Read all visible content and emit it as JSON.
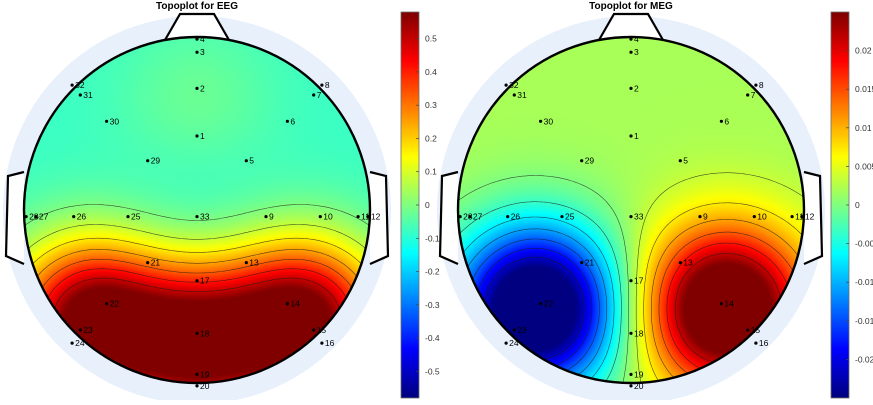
{
  "chart_data": [
    {
      "type": "heatmap",
      "subtype": "topographic head map",
      "title": "Topoplot for EEG",
      "colormap": "jet",
      "colorbar_range": [
        -0.58,
        0.58
      ],
      "colorbar_ticks": [
        0.5,
        0.4,
        0.3,
        0.2,
        0.1,
        0,
        -0.1,
        -0.2,
        -0.3,
        -0.4,
        -0.5
      ],
      "colorbar_tick_labels": [
        "0.5",
        "0.4",
        "0.3",
        "0.2",
        "0.1",
        "0",
        "-0.1",
        "-0.2",
        "-0.3",
        "-0.4",
        "-0.5"
      ],
      "sources": [
        {
          "x": -0.62,
          "y": -0.64,
          "value": 0.62
        },
        {
          "x": 0.62,
          "y": -0.64,
          "value": 0.62
        },
        {
          "x": 0.0,
          "y": -0.78,
          "value": 0.55
        },
        {
          "x": 0.0,
          "y": 0.08,
          "value": -0.1
        },
        {
          "x": 0.0,
          "y": 0.62,
          "value": -0.02
        }
      ],
      "base_value": -0.08,
      "electrodes": [
        {
          "label": "1",
          "x": 0.0,
          "y": 0.45
        },
        {
          "label": "2",
          "x": 0.0,
          "y": 0.74
        },
        {
          "label": "3",
          "x": 0.0,
          "y": 0.96
        },
        {
          "label": "4",
          "x": 0.0,
          "y": 1.04
        },
        {
          "label": "5",
          "x": 0.3,
          "y": 0.3
        },
        {
          "label": "6",
          "x": 0.55,
          "y": 0.54
        },
        {
          "label": "7",
          "x": 0.71,
          "y": 0.7
        },
        {
          "label": "8",
          "x": 0.76,
          "y": 0.76
        },
        {
          "label": "9",
          "x": 0.42,
          "y": -0.04
        },
        {
          "label": "10",
          "x": 0.75,
          "y": -0.04
        },
        {
          "label": "11",
          "x": 0.98,
          "y": -0.04
        },
        {
          "label": "12",
          "x": 1.04,
          "y": -0.04
        },
        {
          "label": "13",
          "x": 0.3,
          "y": -0.32
        },
        {
          "label": "14",
          "x": 0.55,
          "y": -0.57
        },
        {
          "label": "15",
          "x": 0.71,
          "y": -0.73
        },
        {
          "label": "16",
          "x": 0.76,
          "y": -0.81
        },
        {
          "label": "17",
          "x": 0.0,
          "y": -0.43
        },
        {
          "label": "18",
          "x": 0.0,
          "y": -0.75
        },
        {
          "label": "19",
          "x": 0.0,
          "y": -1.0
        },
        {
          "label": "20",
          "x": 0.0,
          "y": -1.07
        },
        {
          "label": "21",
          "x": -0.3,
          "y": -0.32
        },
        {
          "label": "22",
          "x": -0.55,
          "y": -0.57
        },
        {
          "label": "23",
          "x": -0.71,
          "y": -0.73
        },
        {
          "label": "24",
          "x": -0.76,
          "y": -0.81
        },
        {
          "label": "25",
          "x": -0.42,
          "y": -0.04
        },
        {
          "label": "26",
          "x": -0.75,
          "y": -0.04
        },
        {
          "label": "27",
          "x": -0.98,
          "y": -0.04
        },
        {
          "label": "28",
          "x": -1.04,
          "y": -0.04
        },
        {
          "label": "29",
          "x": -0.3,
          "y": 0.3
        },
        {
          "label": "30",
          "x": -0.55,
          "y": 0.54
        },
        {
          "label": "31",
          "x": -0.71,
          "y": 0.7
        },
        {
          "label": "32",
          "x": -0.76,
          "y": 0.76
        },
        {
          "label": "33",
          "x": 0.0,
          "y": -0.04
        }
      ]
    },
    {
      "type": "heatmap",
      "subtype": "topographic head map",
      "title": "Topoplot for MEG",
      "colormap": "jet",
      "colorbar_range": [
        -0.025,
        0.025
      ],
      "colorbar_ticks": [
        0.02,
        0.015,
        0.01,
        0.005,
        0,
        -0.005,
        -0.01,
        -0.015,
        -0.02
      ],
      "colorbar_tick_labels": [
        "0.02",
        "0.015",
        "0.01",
        "0.005",
        "0",
        "-0.005",
        "-0.01",
        "-0.015",
        "-0.02"
      ],
      "sources": [
        {
          "x": -0.55,
          "y": -0.57,
          "value": -0.034
        },
        {
          "x": 0.55,
          "y": -0.57,
          "value": 0.034
        }
      ],
      "base_value": 0.002,
      "electrodes": [
        {
          "label": "1",
          "x": 0.0,
          "y": 0.45
        },
        {
          "label": "2",
          "x": 0.0,
          "y": 0.74
        },
        {
          "label": "3",
          "x": 0.0,
          "y": 0.96
        },
        {
          "label": "4",
          "x": 0.0,
          "y": 1.04
        },
        {
          "label": "5",
          "x": 0.3,
          "y": 0.3
        },
        {
          "label": "6",
          "x": 0.55,
          "y": 0.54
        },
        {
          "label": "7",
          "x": 0.71,
          "y": 0.7
        },
        {
          "label": "8",
          "x": 0.76,
          "y": 0.76
        },
        {
          "label": "9",
          "x": 0.42,
          "y": -0.04
        },
        {
          "label": "10",
          "x": 0.75,
          "y": -0.04
        },
        {
          "label": "11",
          "x": 0.98,
          "y": -0.04
        },
        {
          "label": "12",
          "x": 1.04,
          "y": -0.04
        },
        {
          "label": "13",
          "x": 0.3,
          "y": -0.32
        },
        {
          "label": "14",
          "x": 0.55,
          "y": -0.57
        },
        {
          "label": "15",
          "x": 0.71,
          "y": -0.73
        },
        {
          "label": "16",
          "x": 0.76,
          "y": -0.81
        },
        {
          "label": "17",
          "x": 0.0,
          "y": -0.43
        },
        {
          "label": "18",
          "x": 0.0,
          "y": -0.75
        },
        {
          "label": "19",
          "x": 0.0,
          "y": -1.0
        },
        {
          "label": "20",
          "x": 0.0,
          "y": -1.07
        },
        {
          "label": "21",
          "x": -0.3,
          "y": -0.32
        },
        {
          "label": "22",
          "x": -0.55,
          "y": -0.57
        },
        {
          "label": "23",
          "x": -0.71,
          "y": -0.73
        },
        {
          "label": "24",
          "x": -0.76,
          "y": -0.81
        },
        {
          "label": "25",
          "x": -0.42,
          "y": -0.04
        },
        {
          "label": "26",
          "x": -0.75,
          "y": -0.04
        },
        {
          "label": "27",
          "x": -0.98,
          "y": -0.04
        },
        {
          "label": "28",
          "x": -1.04,
          "y": -0.04
        },
        {
          "label": "29",
          "x": -0.3,
          "y": 0.3
        },
        {
          "label": "30",
          "x": -0.55,
          "y": 0.54
        },
        {
          "label": "31",
          "x": -0.71,
          "y": 0.7
        },
        {
          "label": "32",
          "x": -0.76,
          "y": 0.76
        },
        {
          "label": "33",
          "x": 0.0,
          "y": -0.04
        }
      ]
    }
  ],
  "colors": {
    "head_outline": "#000000",
    "outer_ring": "#e8f0fc",
    "electrode_dot": "#000000",
    "contour": "#1a1a1a"
  }
}
